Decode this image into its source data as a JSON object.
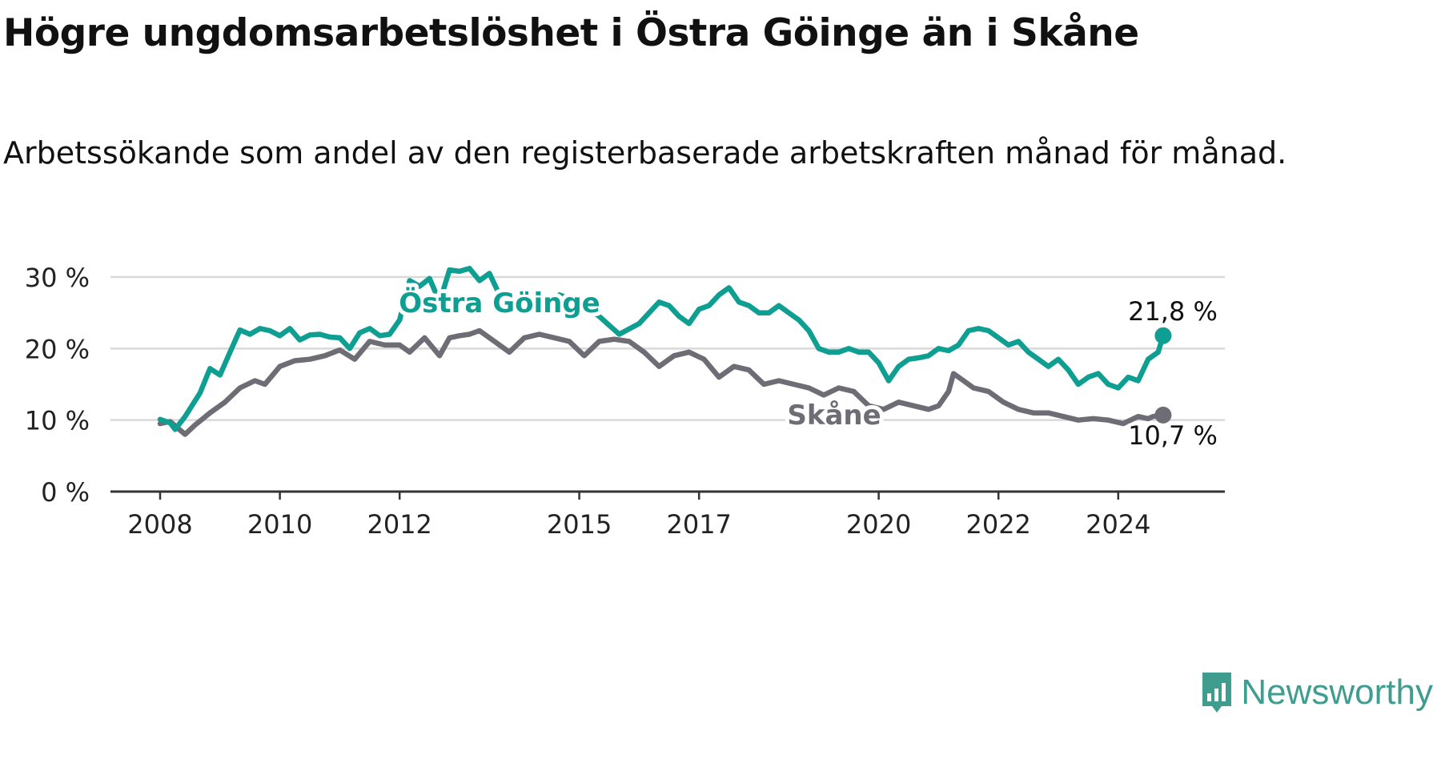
{
  "title": "Högre ungdomsarbetslöshet i Östra Göinge än i Skåne",
  "subtitle": "Arbetssökande som andel av den registerbaserade arbetskraften månad för månad.",
  "brand": "Newsworthy",
  "colors": {
    "ostra": "#0f9e92",
    "skane": "#6e6d75",
    "grid": "#d9d9d9",
    "axis": "#333333",
    "brand": "#3e9d8e"
  },
  "chart_data": {
    "type": "line",
    "x_ticks": [
      "2008",
      "2010",
      "2012",
      "2015",
      "2017",
      "2020",
      "2022",
      "2024"
    ],
    "y_ticks": [
      "0 %",
      "10 %",
      "20 %",
      "30 %"
    ],
    "ylim": [
      0,
      30
    ],
    "x_start": "2008-01",
    "x_end": "2024-10",
    "grid": true,
    "series": [
      {
        "name": "Östra Göinge",
        "key": "ostra",
        "label": "Östra Göinge",
        "end_label": "21,8 %",
        "points": [
          [
            "2008-01",
            10.1
          ],
          [
            "2008-03",
            9.6
          ],
          [
            "2008-04",
            8.7
          ],
          [
            "2008-06",
            10.5
          ],
          [
            "2008-09",
            13.8
          ],
          [
            "2008-11",
            17.2
          ],
          [
            "2009-01",
            16.3
          ],
          [
            "2009-03",
            19.5
          ],
          [
            "2009-05",
            22.6
          ],
          [
            "2009-07",
            22.0
          ],
          [
            "2009-09",
            22.8
          ],
          [
            "2009-11",
            22.5
          ],
          [
            "2010-01",
            21.8
          ],
          [
            "2010-03",
            22.8
          ],
          [
            "2010-05",
            21.2
          ],
          [
            "2010-07",
            21.9
          ],
          [
            "2010-09",
            22.0
          ],
          [
            "2010-11",
            21.6
          ],
          [
            "2011-01",
            21.5
          ],
          [
            "2011-03",
            20.0
          ],
          [
            "2011-05",
            22.2
          ],
          [
            "2011-07",
            22.8
          ],
          [
            "2011-09",
            21.8
          ],
          [
            "2011-11",
            22.0
          ],
          [
            "2012-01",
            24.0
          ],
          [
            "2012-03",
            29.5
          ],
          [
            "2012-05",
            28.7
          ],
          [
            "2012-07",
            29.8
          ],
          [
            "2012-09",
            26.5
          ],
          [
            "2012-11",
            31.0
          ],
          [
            "2013-01",
            30.8
          ],
          [
            "2013-03",
            31.2
          ],
          [
            "2013-05",
            29.5
          ],
          [
            "2013-07",
            30.5
          ],
          [
            "2013-09",
            27.5
          ],
          [
            "2014-01",
            26.0
          ],
          [
            "2014-05",
            25.0
          ],
          [
            "2014-09",
            27.5
          ],
          [
            "2015-01",
            26.5
          ],
          [
            "2015-05",
            24.5
          ],
          [
            "2015-09",
            22.0
          ],
          [
            "2016-01",
            23.5
          ],
          [
            "2016-03",
            25.0
          ],
          [
            "2016-05",
            26.5
          ],
          [
            "2016-07",
            26.0
          ],
          [
            "2016-09",
            24.5
          ],
          [
            "2016-11",
            23.5
          ],
          [
            "2017-01",
            25.5
          ],
          [
            "2017-03",
            26.0
          ],
          [
            "2017-05",
            27.5
          ],
          [
            "2017-07",
            28.5
          ],
          [
            "2017-09",
            26.5
          ],
          [
            "2017-11",
            26.0
          ],
          [
            "2018-01",
            25.0
          ],
          [
            "2018-03",
            25.0
          ],
          [
            "2018-05",
            26.0
          ],
          [
            "2018-07",
            25.0
          ],
          [
            "2018-09",
            24.0
          ],
          [
            "2018-11",
            22.5
          ],
          [
            "2019-01",
            20.0
          ],
          [
            "2019-03",
            19.5
          ],
          [
            "2019-05",
            19.5
          ],
          [
            "2019-07",
            20.0
          ],
          [
            "2019-09",
            19.5
          ],
          [
            "2019-11",
            19.5
          ],
          [
            "2020-01",
            18.0
          ],
          [
            "2020-03",
            15.5
          ],
          [
            "2020-05",
            17.5
          ],
          [
            "2020-07",
            18.5
          ],
          [
            "2020-09",
            18.7
          ],
          [
            "2020-11",
            19.0
          ],
          [
            "2021-01",
            20.0
          ],
          [
            "2021-03",
            19.7
          ],
          [
            "2021-05",
            20.5
          ],
          [
            "2021-07",
            22.5
          ],
          [
            "2021-09",
            22.8
          ],
          [
            "2021-11",
            22.5
          ],
          [
            "2022-01",
            21.5
          ],
          [
            "2022-03",
            20.5
          ],
          [
            "2022-05",
            21.0
          ],
          [
            "2022-07",
            19.5
          ],
          [
            "2022-09",
            18.5
          ],
          [
            "2022-11",
            17.5
          ],
          [
            "2023-01",
            18.5
          ],
          [
            "2023-03",
            17.0
          ],
          [
            "2023-05",
            15.0
          ],
          [
            "2023-07",
            16.0
          ],
          [
            "2023-09",
            16.5
          ],
          [
            "2023-11",
            15.0
          ],
          [
            "2024-01",
            14.5
          ],
          [
            "2024-03",
            16.0
          ],
          [
            "2024-05",
            15.5
          ],
          [
            "2024-07",
            18.5
          ],
          [
            "2024-09",
            19.5
          ],
          [
            "2024-10",
            21.8
          ]
        ]
      },
      {
        "name": "Skåne",
        "key": "skane",
        "label": "Skåne",
        "end_label": "10,7 %",
        "points": [
          [
            "2008-01",
            9.5
          ],
          [
            "2008-03",
            9.8
          ],
          [
            "2008-06",
            8.0
          ],
          [
            "2008-08",
            9.3
          ],
          [
            "2008-11",
            11.0
          ],
          [
            "2009-02",
            12.5
          ],
          [
            "2009-05",
            14.5
          ],
          [
            "2009-08",
            15.5
          ],
          [
            "2009-10",
            15.0
          ],
          [
            "2010-01",
            17.5
          ],
          [
            "2010-04",
            18.3
          ],
          [
            "2010-07",
            18.5
          ],
          [
            "2010-10",
            19.0
          ],
          [
            "2011-01",
            19.8
          ],
          [
            "2011-04",
            18.5
          ],
          [
            "2011-07",
            21.0
          ],
          [
            "2011-10",
            20.5
          ],
          [
            "2012-01",
            20.5
          ],
          [
            "2012-03",
            19.5
          ],
          [
            "2012-06",
            21.5
          ],
          [
            "2012-09",
            19.0
          ],
          [
            "2012-11",
            21.5
          ],
          [
            "2013-01",
            21.8
          ],
          [
            "2013-03",
            22.0
          ],
          [
            "2013-05",
            22.5
          ],
          [
            "2013-08",
            21.0
          ],
          [
            "2013-11",
            19.5
          ],
          [
            "2014-02",
            21.5
          ],
          [
            "2014-05",
            22.0
          ],
          [
            "2014-08",
            21.5
          ],
          [
            "2014-11",
            21.0
          ],
          [
            "2015-02",
            19.0
          ],
          [
            "2015-05",
            21.0
          ],
          [
            "2015-08",
            21.3
          ],
          [
            "2015-11",
            21.0
          ],
          [
            "2016-02",
            19.5
          ],
          [
            "2016-05",
            17.5
          ],
          [
            "2016-08",
            19.0
          ],
          [
            "2016-11",
            19.5
          ],
          [
            "2017-02",
            18.5
          ],
          [
            "2017-05",
            16.0
          ],
          [
            "2017-08",
            17.5
          ],
          [
            "2017-11",
            17.0
          ],
          [
            "2018-02",
            15.0
          ],
          [
            "2018-05",
            15.5
          ],
          [
            "2018-08",
            15.0
          ],
          [
            "2018-11",
            14.5
          ],
          [
            "2019-02",
            13.5
          ],
          [
            "2019-05",
            14.5
          ],
          [
            "2019-08",
            14.0
          ],
          [
            "2019-11",
            12.0
          ],
          [
            "2020-02",
            11.5
          ],
          [
            "2020-05",
            12.5
          ],
          [
            "2020-08",
            12.0
          ],
          [
            "2020-11",
            11.5
          ],
          [
            "2021-01",
            12.0
          ],
          [
            "2021-03",
            14.0
          ],
          [
            "2021-04",
            16.5
          ],
          [
            "2021-06",
            15.5
          ],
          [
            "2021-08",
            14.5
          ],
          [
            "2021-11",
            14.0
          ],
          [
            "2022-02",
            12.5
          ],
          [
            "2022-05",
            11.5
          ],
          [
            "2022-08",
            11.0
          ],
          [
            "2022-11",
            11.0
          ],
          [
            "2023-02",
            10.5
          ],
          [
            "2023-05",
            10.0
          ],
          [
            "2023-08",
            10.2
          ],
          [
            "2023-11",
            10.0
          ],
          [
            "2024-02",
            9.5
          ],
          [
            "2024-05",
            10.5
          ],
          [
            "2024-07",
            10.2
          ],
          [
            "2024-08",
            10.5
          ],
          [
            "2024-10",
            10.7
          ]
        ]
      }
    ]
  }
}
